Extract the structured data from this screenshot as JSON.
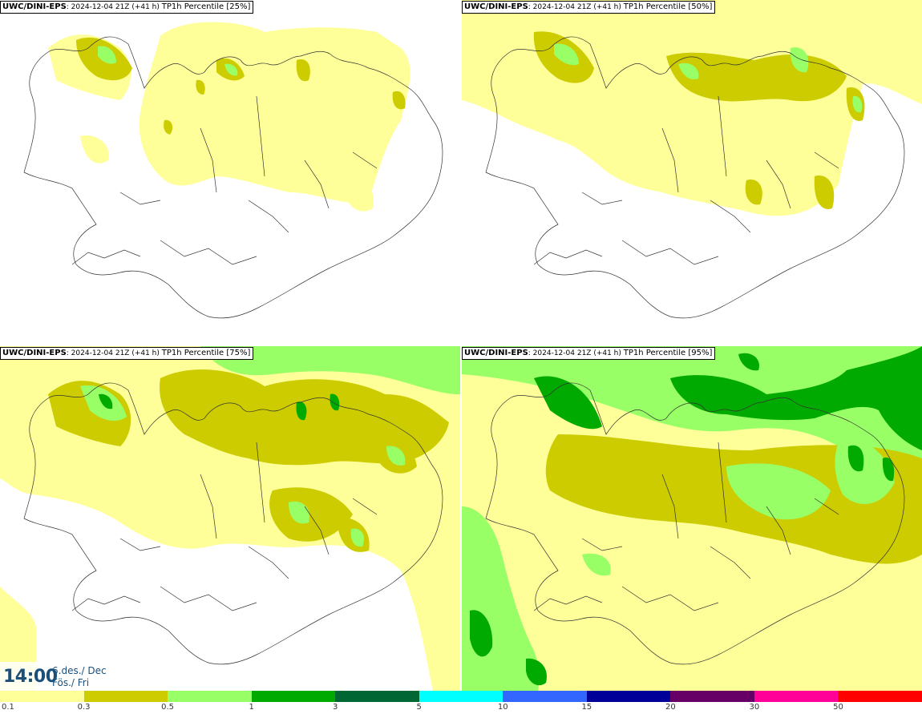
{
  "panels": [
    {
      "model": "UWC/DINI-EPS",
      "run": "2024-12-04 21Z (+41 h)",
      "var": "TP1h Percentile [25%]"
    },
    {
      "model": "UWC/DINI-EPS",
      "run": "2024-12-04 21Z (+41 h)",
      "var": "TP1h Percentile [50%]"
    },
    {
      "model": "UWC/DINI-EPS",
      "run": "2024-12-04 21Z (+41 h)",
      "var": "TP1h Percentile [75%]"
    },
    {
      "model": "UWC/DINI-EPS",
      "run": "2024-12-04 21Z (+41 h)",
      "var": "TP1h Percentile [95%]"
    }
  ],
  "valid_time": {
    "time": "14:00",
    "date": "6.des./ Dec",
    "day": "Fös./ Fri"
  },
  "colorbar": {
    "labels": [
      "0.1",
      "0.3",
      "0.5",
      "1",
      "3",
      "5",
      "10",
      "15",
      "20",
      "30",
      "50"
    ],
    "colors": [
      "#ffff99",
      "#cccc00",
      "#99ff66",
      "#00aa00",
      "#006633",
      "#00ffff",
      "#3366ff",
      "#000099",
      "#660066",
      "#ff0099",
      "#ff0000"
    ]
  }
}
